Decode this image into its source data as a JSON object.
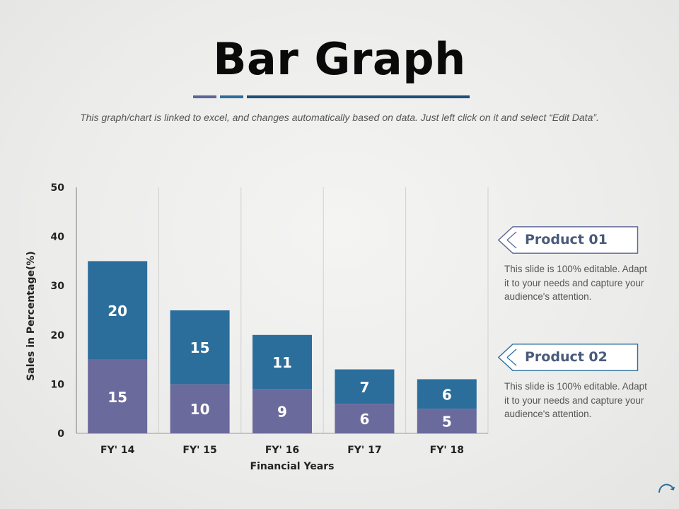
{
  "title": "Bar Graph",
  "subtitle": "This graph/chart is linked to excel, and changes automatically based on data. Just left click on it and select “Edit Data”.",
  "colors": {
    "product01": "#6b6a9c",
    "product02": "#2b6e9c",
    "accent_dark": "#1f4e79",
    "accent_purple": "#5d6595"
  },
  "callouts": [
    {
      "label": "Product 01",
      "text": "This slide is 100% editable. Adapt it to your needs and capture your audience's attention."
    },
    {
      "label": "Product 02",
      "text": "This slide is 100% editable. Adapt it to your needs and capture your audience's attention."
    }
  ],
  "chart_data": {
    "type": "bar",
    "stacked": true,
    "categories": [
      "FY' 14",
      "FY' 15",
      "FY' 16",
      "FY' 17",
      "FY' 18"
    ],
    "series": [
      {
        "values": [
          15,
          10,
          9,
          6,
          5
        ]
      },
      {
        "values": [
          20,
          15,
          11,
          7,
          6
        ]
      }
    ],
    "xlabel": "Financial Years",
    "ylabel": "Sales in Percentage(%)",
    "ylim": [
      0,
      50
    ],
    "yticks": [
      0,
      10,
      20,
      30,
      40,
      50
    ],
    "grid": "vertical",
    "data_labels": true
  }
}
